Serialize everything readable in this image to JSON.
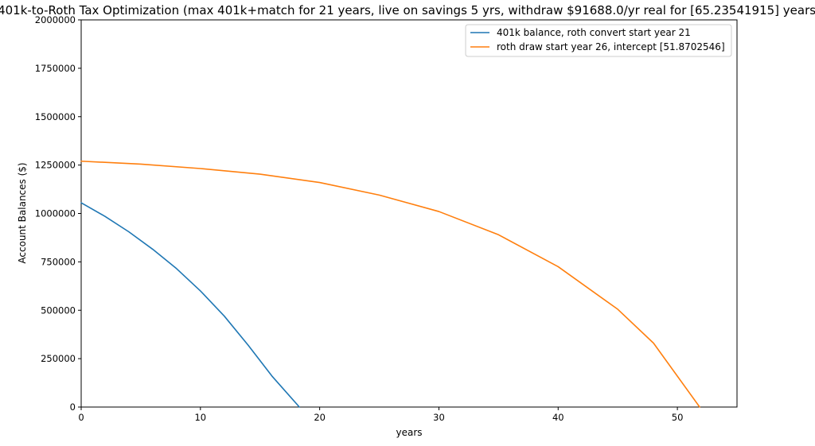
{
  "chart_data": {
    "type": "line",
    "title": "401k-to-Roth Tax Optimization (max 401k+match for 21 years, live on savings 5 yrs, withdraw $91688.0/yr real for [65.23541915] years)",
    "xlabel": "years",
    "ylabel": "Account Balances ($)",
    "xlim": [
      0,
      55
    ],
    "ylim": [
      0,
      2000000
    ],
    "xticks": [
      0,
      10,
      20,
      30,
      40,
      50
    ],
    "yticks": [
      0,
      250000,
      500000,
      750000,
      1000000,
      1250000,
      1500000,
      1750000,
      2000000
    ],
    "grid": false,
    "legend_position": "top-right",
    "series": [
      {
        "name": "401k balance, roth convert start year 21",
        "color": "#1f77b4",
        "x": [
          0,
          2,
          4,
          6,
          8,
          10,
          12,
          14,
          16,
          18.3
        ],
        "y": [
          1055000,
          985000,
          905000,
          815000,
          715000,
          600000,
          470000,
          320000,
          160000,
          0
        ]
      },
      {
        "name": "roth draw start year 26, intercept [51.8702546]",
        "color": "#ff7f0e",
        "x": [
          0,
          5,
          10,
          15,
          20,
          25,
          30,
          35,
          40,
          45,
          48,
          51.87
        ],
        "y": [
          1270000,
          1255000,
          1232000,
          1203000,
          1160000,
          1095000,
          1010000,
          890000,
          725000,
          505000,
          330000,
          0
        ]
      }
    ]
  }
}
